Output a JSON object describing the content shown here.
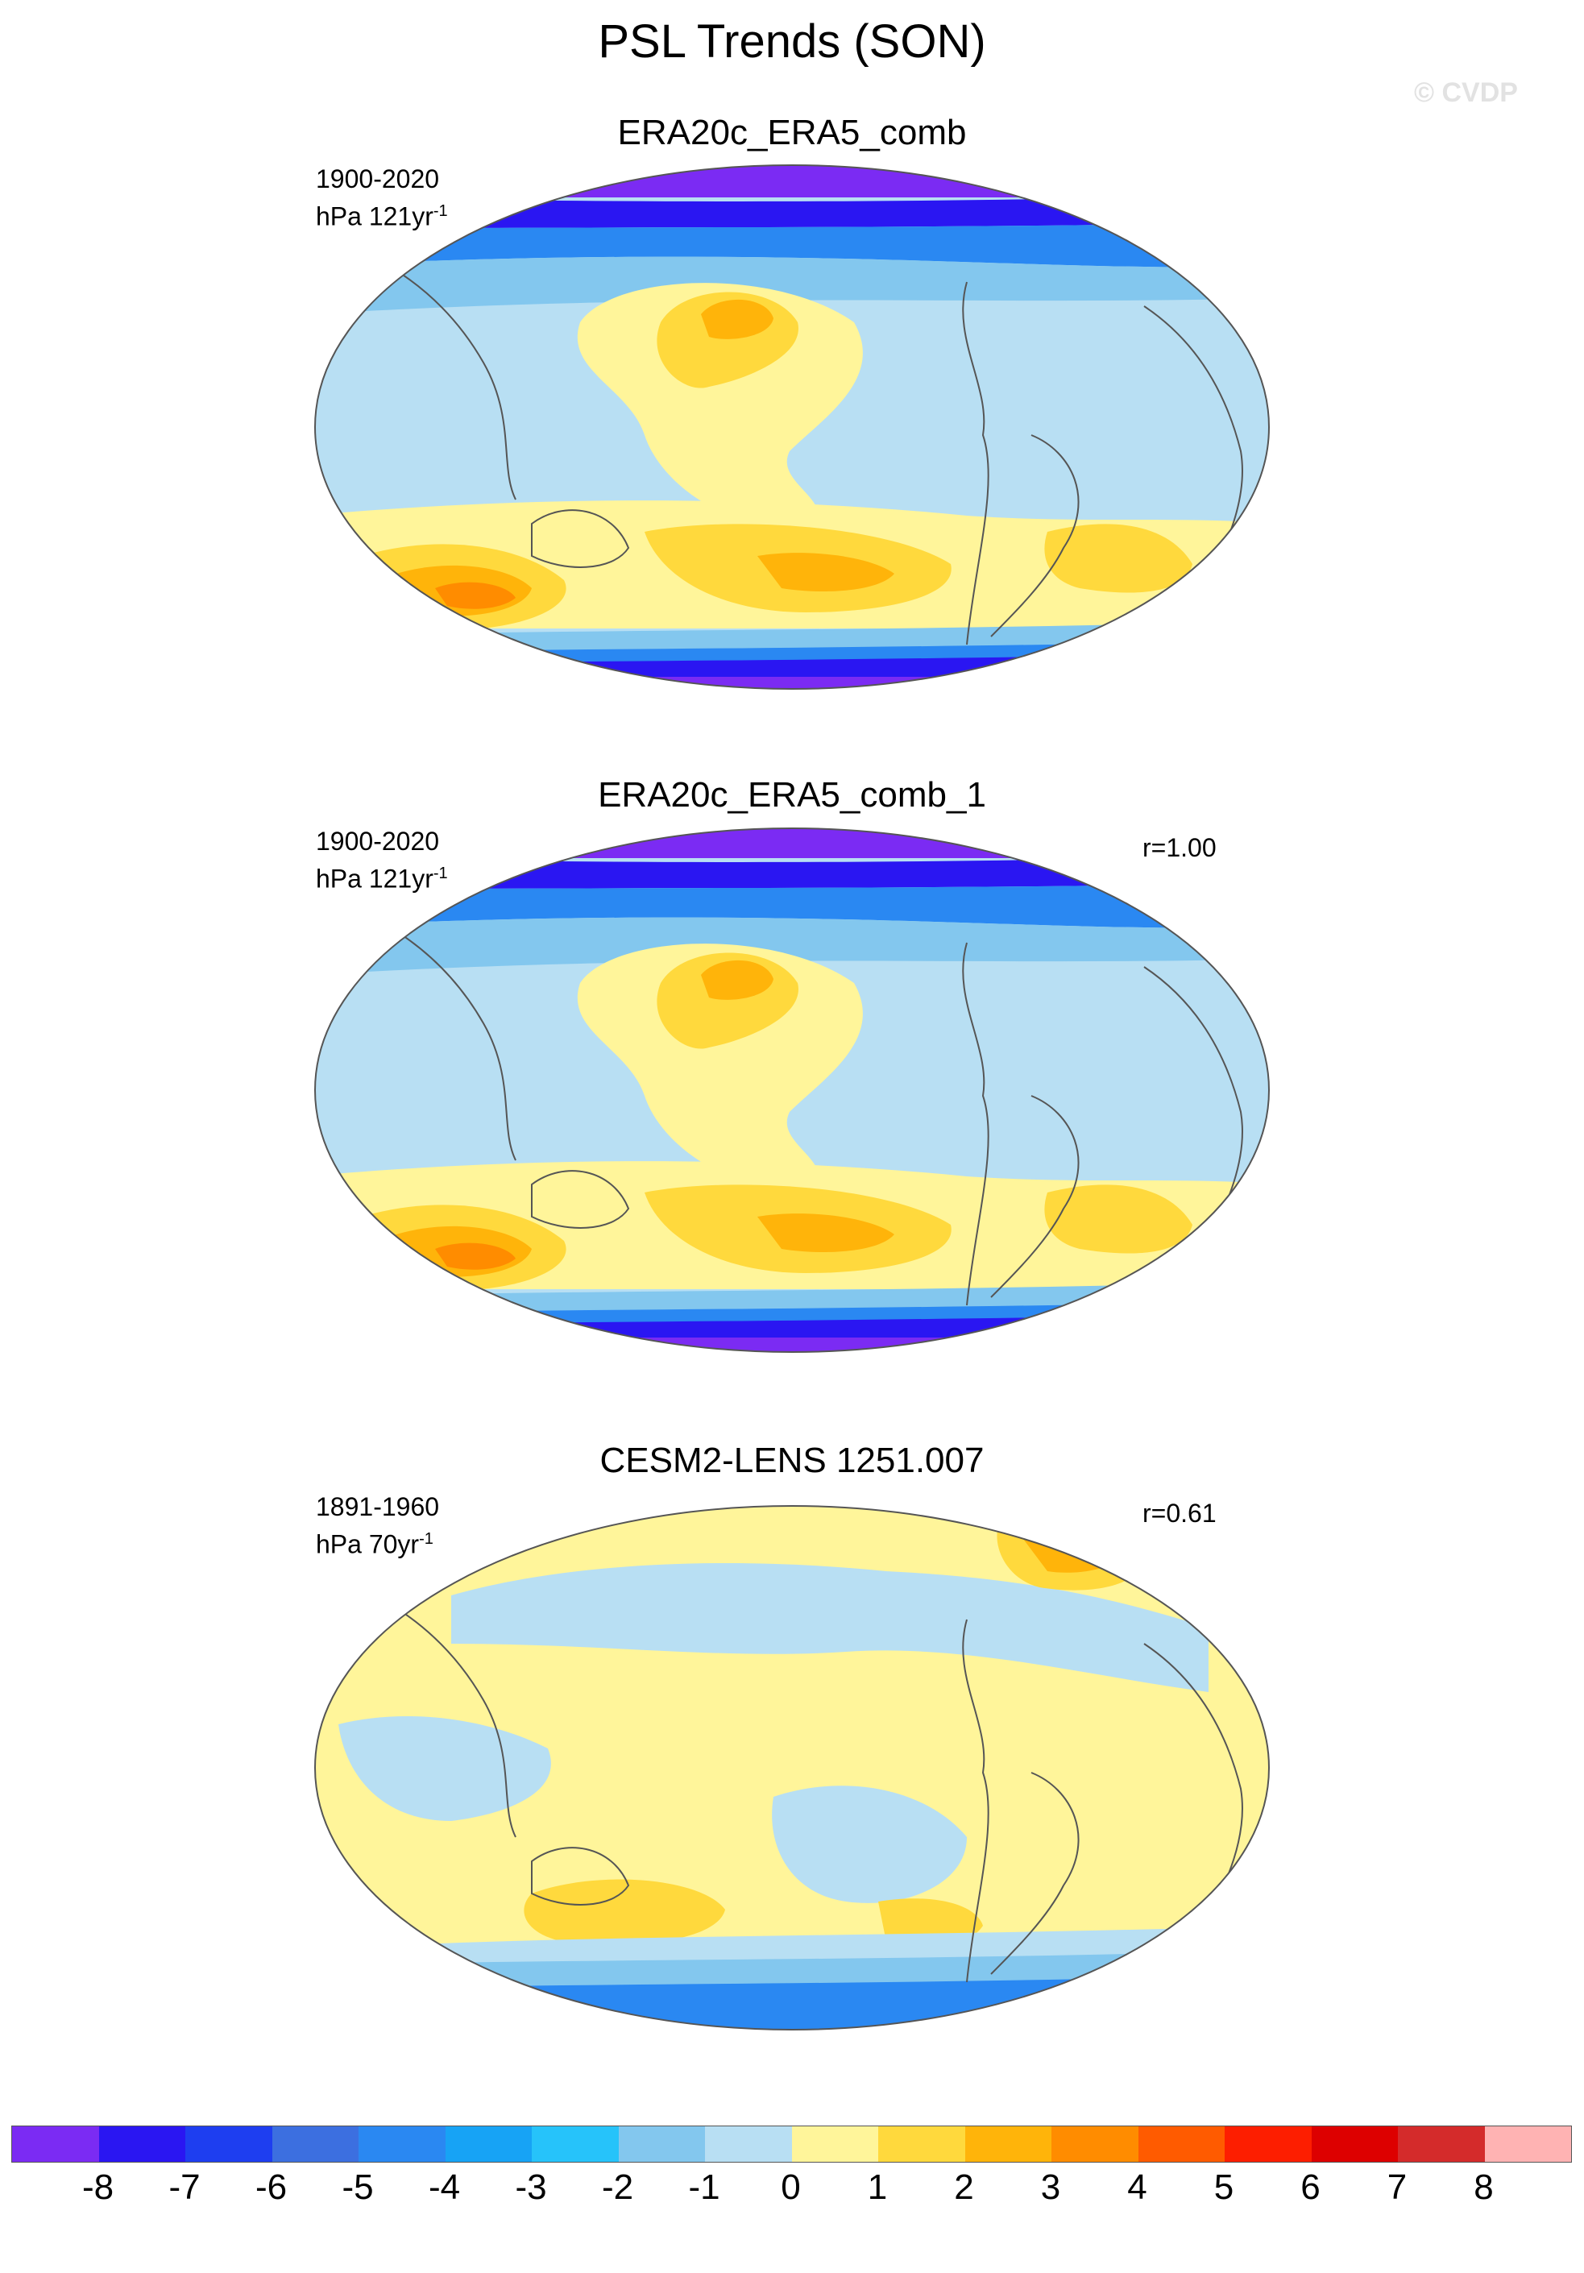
{
  "title": "PSL Trends (SON)",
  "watermark": "© CVDP",
  "panels": [
    {
      "title": "ERA20c_ERA5_comb",
      "period": "1900-2020",
      "units_base": "hPa 121yr",
      "units_exp": "-1",
      "correlation": ""
    },
    {
      "title": "ERA20c_ERA5_comb_1",
      "period": "1900-2020",
      "units_base": "hPa 121yr",
      "units_exp": "-1",
      "correlation": "r=1.00"
    },
    {
      "title": "CESM2-LENS 1251.007",
      "period": "1891-1960",
      "units_base": "hPa 70yr",
      "units_exp": "-1",
      "correlation": "r=0.61"
    }
  ],
  "colorbar": {
    "labels": [
      "-8",
      "-7",
      "-6",
      "-5",
      "-4",
      "-3",
      "-2",
      "-1",
      "0",
      "1",
      "2",
      "3",
      "4",
      "5",
      "6",
      "7",
      "8"
    ],
    "colors": [
      "#7b2bf3",
      "#2a16f2",
      "#1e3ef0",
      "#3c6fe0",
      "#2a88f2",
      "#17a3f5",
      "#26c3fa",
      "#83c7ee",
      "#b8dff3",
      "#fff59a",
      "#ffd93d",
      "#ffb40a",
      "#ff8c00",
      "#ff5b00",
      "#fd1e00",
      "#dd0000",
      "#d42b2b",
      "#ffb3b3"
    ]
  },
  "map_colors": {
    "deep_negative": "#7b2bf3",
    "negative_strong": "#2a16f2",
    "negative": "#2a88f2",
    "negative_weak": "#83c7ee",
    "near_zero_negative": "#b8dff3",
    "near_zero_positive": "#fff59a",
    "positive": "#ffd93d",
    "positive_strong": "#ffb40a",
    "positive_max": "#ff8c00",
    "coast": "#555555"
  }
}
